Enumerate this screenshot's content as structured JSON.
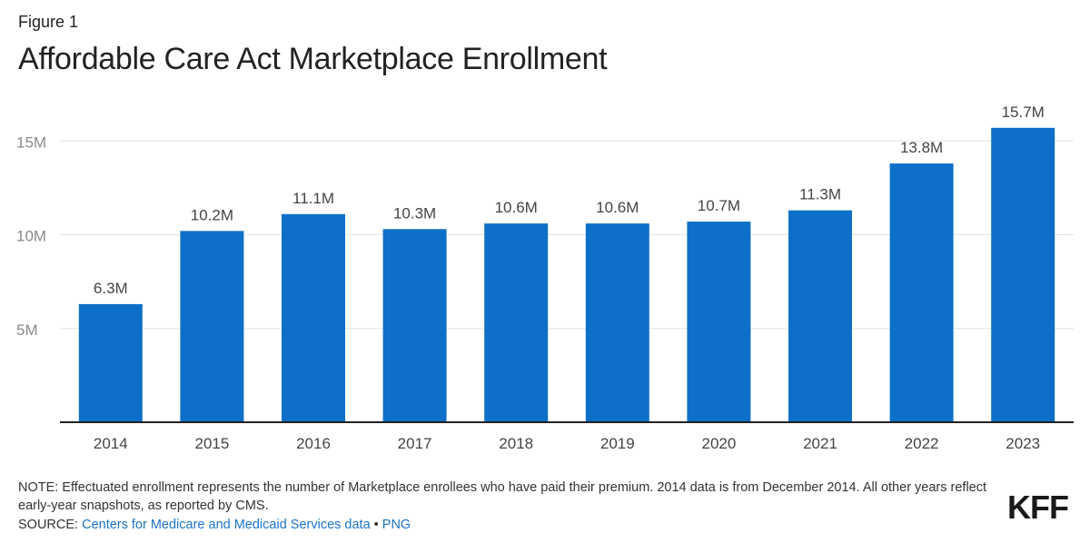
{
  "figure_label": "Figure 1",
  "title": "Affordable Care Act Marketplace Enrollment",
  "chart_data": {
    "type": "bar",
    "title": "Affordable Care Act Marketplace Enrollment",
    "categories": [
      "2014",
      "2015",
      "2016",
      "2017",
      "2018",
      "2019",
      "2020",
      "2021",
      "2022",
      "2023"
    ],
    "values": [
      6.3,
      10.2,
      11.1,
      10.3,
      10.6,
      10.6,
      10.7,
      11.3,
      13.8,
      15.7
    ],
    "data_labels": [
      "6.3M",
      "10.2M",
      "11.1M",
      "10.3M",
      "10.6M",
      "10.6M",
      "10.7M",
      "11.3M",
      "13.8M",
      "15.7M"
    ],
    "yticks": [
      5,
      10,
      15
    ],
    "ytick_labels": [
      "5M",
      "10M",
      "15M"
    ],
    "ylim": [
      0,
      17
    ],
    "xlabel": "",
    "ylabel": "",
    "grid": true,
    "bar_color": "#0d6fc8"
  },
  "note": "NOTE: Effectuated enrollment represents the number of Marketplace enrollees who have paid their premium. 2014 data is from December 2014. All other years reflect early-year snapshots, as reported by CMS.",
  "source": {
    "prefix": "SOURCE: ",
    "link_text": "Centers for Medicare and Medicaid Services data",
    "separator": " • ",
    "png_text": "PNG"
  },
  "logo": "KFF",
  "colors": {
    "bar": "#0d6fc8",
    "link": "#1a73c7",
    "grid": "#e3e3e3",
    "axis": "#222222"
  }
}
